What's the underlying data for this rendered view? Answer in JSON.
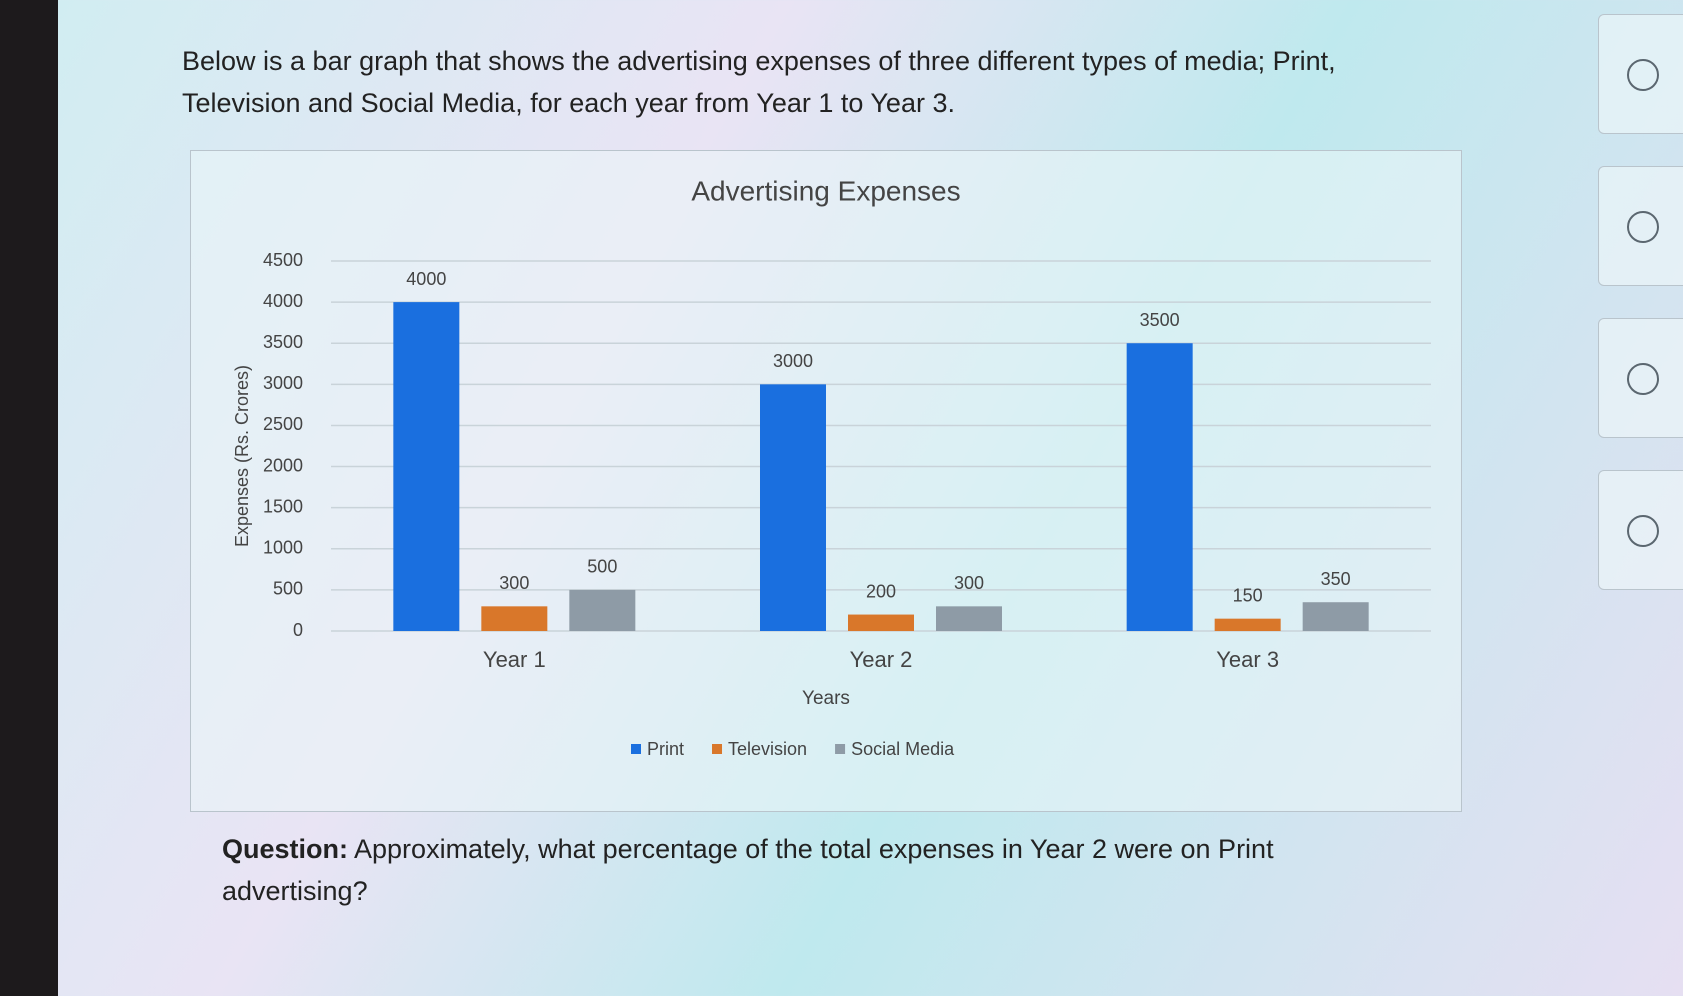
{
  "intro": "Below is a bar graph that shows the advertising expenses of three different types of media; Print, Television and Social Media, for each year from Year 1 to Year 3.",
  "chart_data": {
    "type": "bar",
    "title": "Advertising Expenses",
    "categories": [
      "Year 1",
      "Year 2",
      "Year 3"
    ],
    "series": [
      {
        "name": "Print",
        "color": "#1a6fdf",
        "values": [
          4000,
          3000,
          3500
        ]
      },
      {
        "name": "Television",
        "color": "#d9772a",
        "values": [
          300,
          200,
          150
        ]
      },
      {
        "name": "Social Media",
        "color": "#8e9ba6",
        "values": [
          500,
          300,
          350
        ]
      }
    ],
    "xlabel": "Years",
    "ylabel": "Expenses (Rs. Crores)",
    "ylim": [
      0,
      4500
    ],
    "yticks": [
      0,
      500,
      1000,
      1500,
      2000,
      2500,
      3000,
      3500,
      4000,
      4500
    ],
    "grid": true,
    "legend": "bottom"
  },
  "question": {
    "label": "Question:",
    "text": "Approximately, what percentage of the total expenses in Year 2 were on Print advertising?"
  }
}
